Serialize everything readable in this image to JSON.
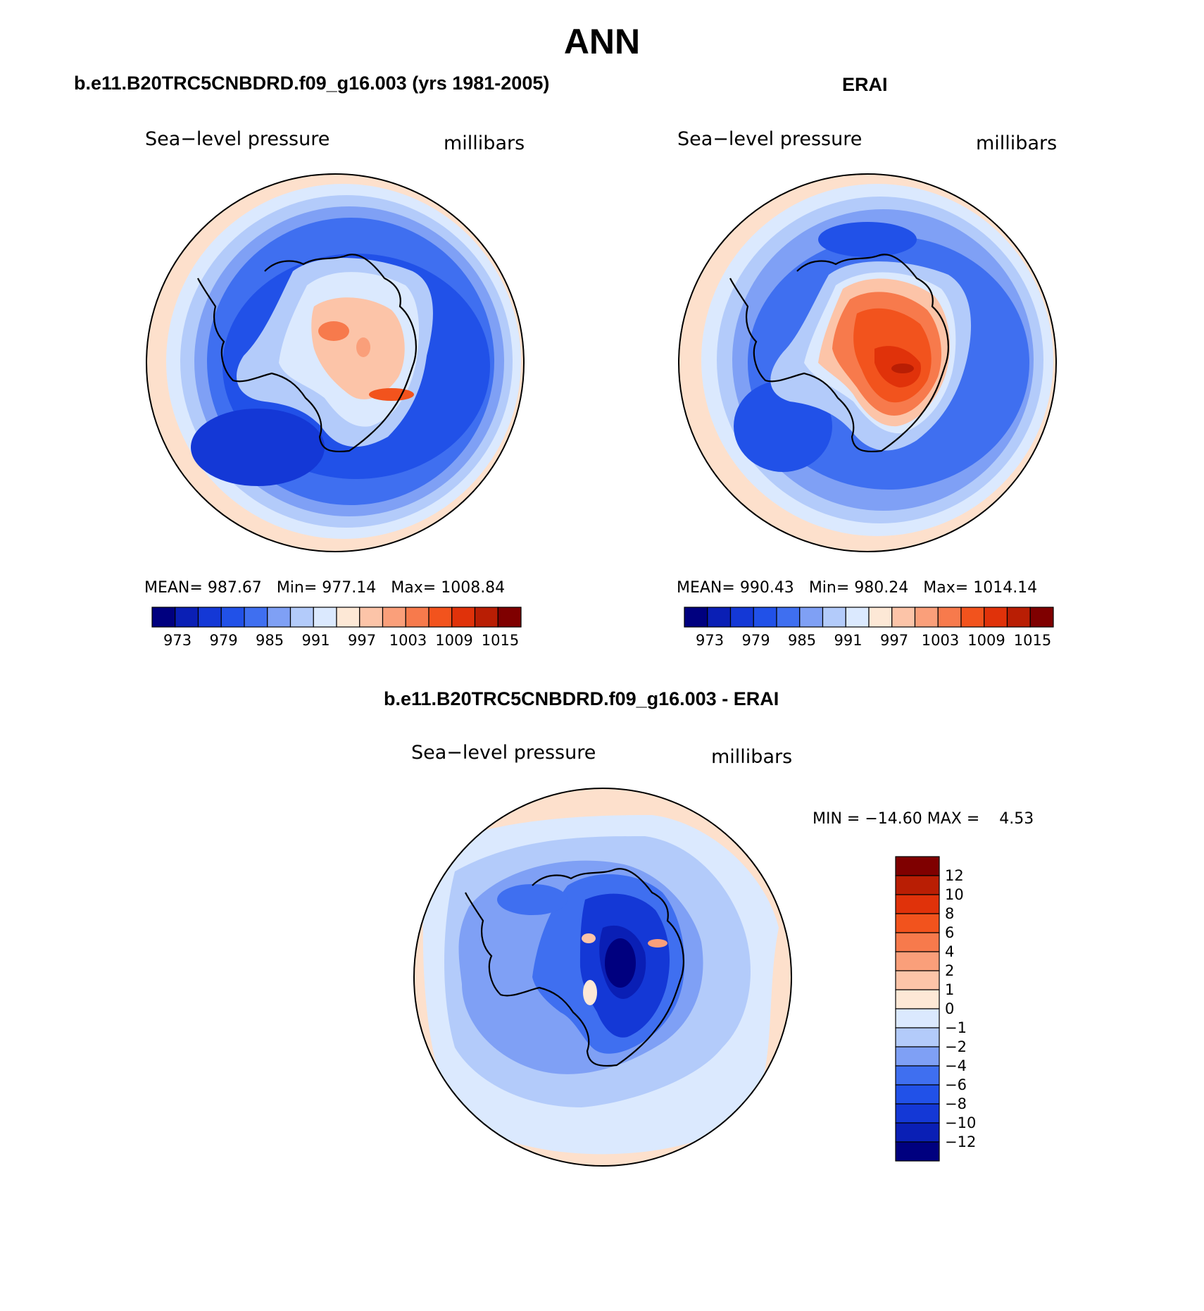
{
  "title": "ANN",
  "panels": {
    "model": {
      "title": "b.e11.B20TRC5CNBDRD.f09_g16.003 (yrs 1981-2005)",
      "var_label": "Sea−level pressure",
      "units": "millibars",
      "mean_label": "MEAN=",
      "mean_value": "987.67",
      "min_label": "Min=",
      "min_value": "977.14",
      "max_label": "Max=",
      "max_value": "1008.84"
    },
    "obs": {
      "title": "ERAI",
      "var_label": "Sea−level pressure",
      "units": "millibars",
      "mean_label": "MEAN=",
      "mean_value": "990.43",
      "min_label": "Min=",
      "min_value": "980.24",
      "max_label": "Max=",
      "max_value": "1014.14"
    },
    "diff": {
      "title": "b.e11.B20TRC5CNBDRD.f09_g16.003 - ERAI",
      "var_label": "Sea−level pressure",
      "units": "millibars",
      "minmax_text": "MIN = −14.60 MAX =    4.53"
    }
  },
  "colorbar_abs": {
    "ticks": [
      "973",
      "979",
      "985",
      "991",
      "997",
      "1003",
      "1009",
      "1015"
    ],
    "colors": [
      "#00007f",
      "#0a1fb5",
      "#1438d6",
      "#2151e8",
      "#3f6ff0",
      "#7fa0f5",
      "#b3cbfa",
      "#dbe9fe",
      "#fde8d6",
      "#fcc4a8",
      "#fa9f7a",
      "#f77a4c",
      "#f2531d",
      "#e0320a",
      "#b91e04",
      "#7f0000"
    ]
  },
  "colorbar_diff": {
    "ticks": [
      "12",
      "10",
      "8",
      "6",
      "4",
      "2",
      "1",
      "0",
      "−1",
      "−2",
      "−4",
      "−6",
      "−8",
      "−10",
      "−12"
    ],
    "colors": [
      "#7f0000",
      "#b91e04",
      "#e0320a",
      "#f2531d",
      "#f77a4c",
      "#fa9f7a",
      "#fcc4a8",
      "#fde8d6",
      "#dbe9fe",
      "#b3cbfa",
      "#7fa0f5",
      "#3f6ff0",
      "#2151e8",
      "#1438d6",
      "#0a1fb5",
      "#00007f"
    ]
  },
  "map_colors": {
    "ring_salmon": "#fde0cc",
    "ring_pale": "#dbe9fe",
    "ring_light": "#b3cbfa",
    "ring_mid": "#7fa0f5",
    "ring_blue": "#3f6ff0",
    "ring_deep": "#2151e8",
    "land_high_red": "#f2531d",
    "land_orange": "#f77a4c",
    "land_dark_red": "#b91e04"
  }
}
